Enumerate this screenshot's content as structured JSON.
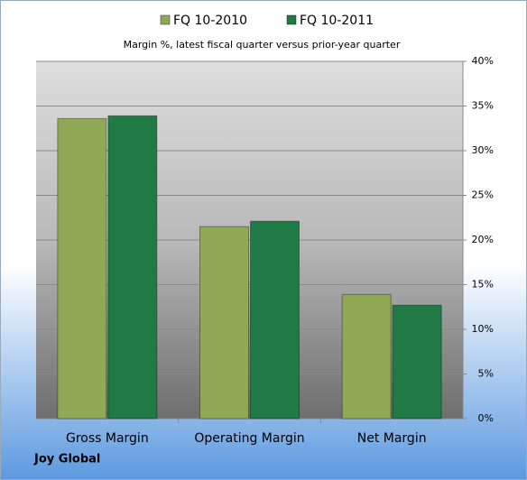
{
  "chart_data": {
    "type": "bar",
    "title": "Margin %,  latest fiscal quarter versus prior-year quarter",
    "footer": "Joy Global",
    "categories": [
      "Gross Margin",
      "Operating Margin",
      "Net Margin"
    ],
    "series": [
      {
        "name": "FQ 10-2010",
        "color": "#8fa957",
        "values": [
          33.6,
          21.5,
          13.9
        ]
      },
      {
        "name": "FQ 10-2011",
        "color": "#1f7a45",
        "values": [
          33.9,
          22.1,
          12.7
        ]
      }
    ],
    "ylim": [
      0,
      40
    ],
    "yticks": [
      {
        "value": 0,
        "label": "0%"
      },
      {
        "value": 5,
        "label": "5%"
      },
      {
        "value": 10,
        "label": "10%"
      },
      {
        "value": 15,
        "label": "15%"
      },
      {
        "value": 20,
        "label": "20%"
      },
      {
        "value": 25,
        "label": "25%"
      },
      {
        "value": 30,
        "label": "30%"
      },
      {
        "value": 35,
        "label": "35%"
      },
      {
        "value": 40,
        "label": "40%"
      }
    ],
    "y_axis_side": "right",
    "legend": "top",
    "grid": true
  }
}
